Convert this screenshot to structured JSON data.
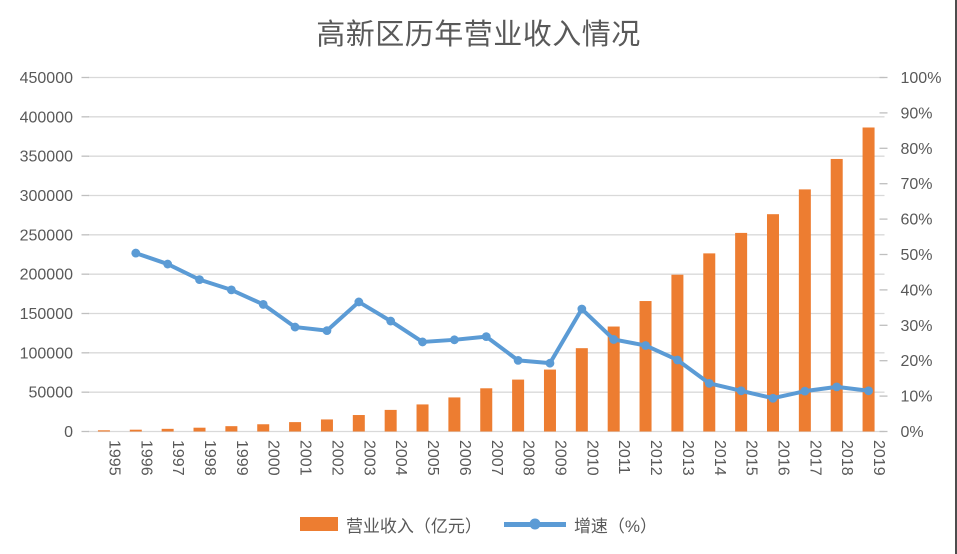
{
  "chart_data": {
    "type": "bar",
    "title": "高新区历年营业收入情况",
    "categories": [
      "1995",
      "1996",
      "1997",
      "1998",
      "1999",
      "2000",
      "2001",
      "2002",
      "2003",
      "2004",
      "2005",
      "2006",
      "2007",
      "2008",
      "2009",
      "2010",
      "2011",
      "2012",
      "2013",
      "2014",
      "2015",
      "2016",
      "2017",
      "2018",
      "2019"
    ],
    "series": [
      {
        "name": "营业收入（亿元）",
        "type": "bar",
        "axis": "left",
        "color": "#ED7D31",
        "values": [
          1529,
          2300,
          3388,
          4840,
          6775,
          9209,
          11928,
          15326,
          20939,
          27466,
          34416,
          43320,
          54925,
          65986,
          78707,
          105917,
          133434,
          165845,
          199305,
          226431,
          252454,
          276245,
          307757,
          346456,
          386451
        ]
      },
      {
        "name": "增速（%）",
        "type": "line",
        "axis": "right",
        "color": "#5B9BD5",
        "values": [
          null,
          50.4,
          47.3,
          42.9,
          40.0,
          35.9,
          29.5,
          28.5,
          36.6,
          31.2,
          25.3,
          25.9,
          26.8,
          20.1,
          19.3,
          34.6,
          26.0,
          24.3,
          20.2,
          13.6,
          11.5,
          9.4,
          11.4,
          12.6,
          11.5
        ]
      }
    ],
    "left_axis": {
      "min": 0,
      "max": 450000,
      "step": 50000,
      "ticks": [
        "0",
        "50000",
        "100000",
        "150000",
        "200000",
        "250000",
        "300000",
        "350000",
        "400000",
        "450000"
      ]
    },
    "right_axis": {
      "min": 0,
      "max": 100,
      "step": 10,
      "ticks": [
        "0%",
        "10%",
        "20%",
        "30%",
        "40%",
        "50%",
        "60%",
        "70%",
        "80%",
        "90%",
        "100%"
      ]
    },
    "grid": true,
    "legend_position": "bottom",
    "colors": {
      "bar": "#ED7D31",
      "line": "#5B9BD5",
      "text": "#595959",
      "gridline": "#D9D9D9",
      "tick": "#BFBFBF",
      "background": "#FFFFFF"
    }
  }
}
